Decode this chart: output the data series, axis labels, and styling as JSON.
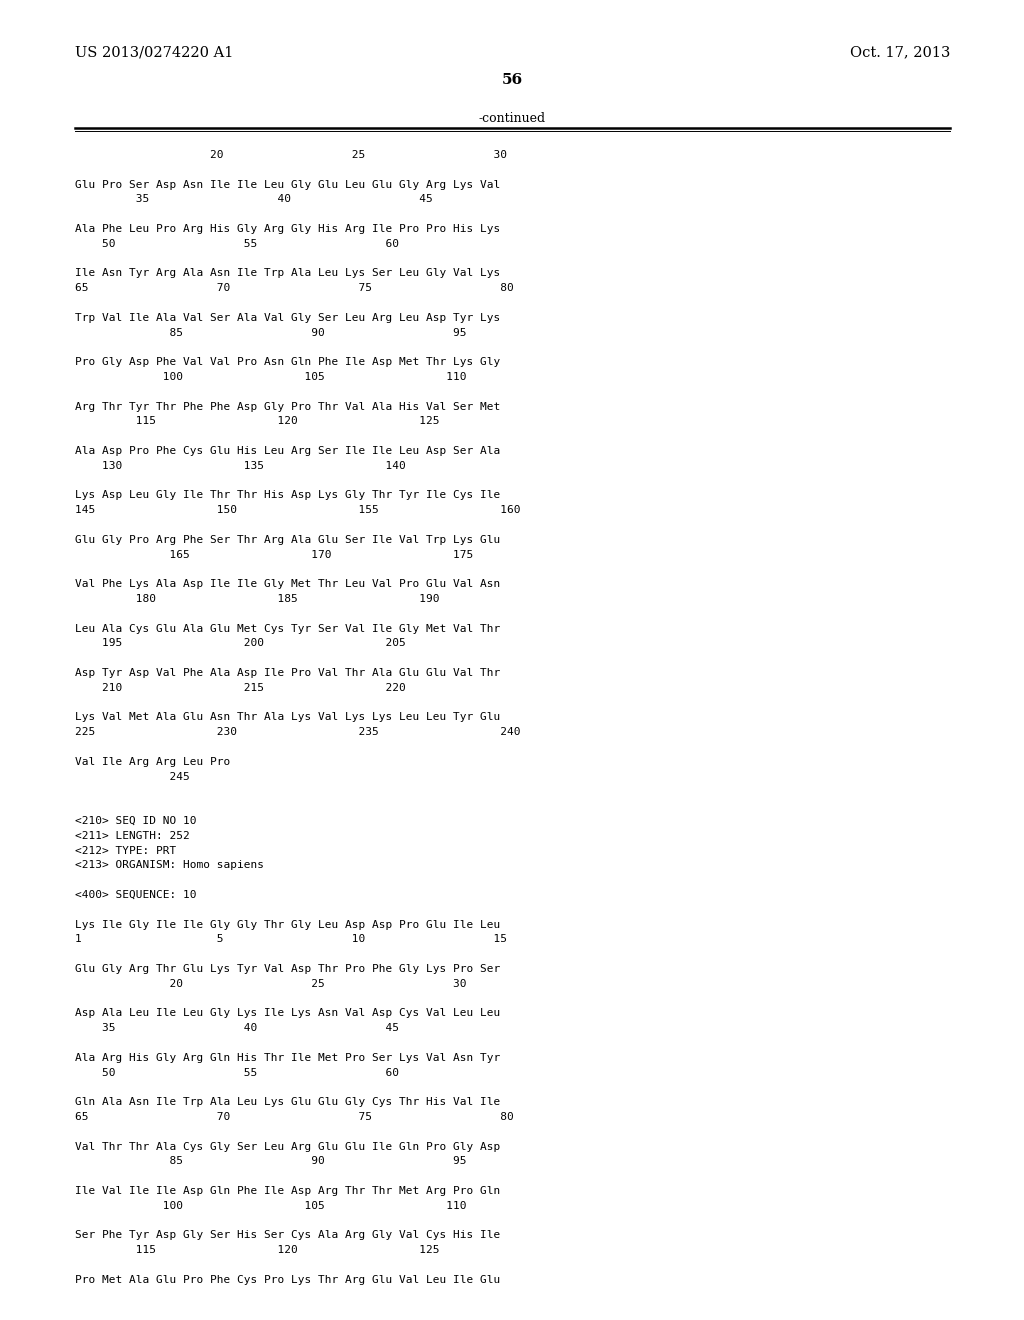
{
  "header_left": "US 2013/0274220 A1",
  "header_right": "Oct. 17, 2013",
  "page_number": "56",
  "continued_label": "-continued",
  "background_color": "#ffffff",
  "text_color": "#000000",
  "seq_lines": [
    "                    20                   25                   30",
    "",
    "Glu Pro Ser Asp Asn Ile Ile Leu Gly Glu Leu Glu Gly Arg Lys Val",
    "         35                   40                   45",
    "",
    "Ala Phe Leu Pro Arg His Gly Arg Gly His Arg Ile Pro Pro His Lys",
    "    50                   55                   60",
    "",
    "Ile Asn Tyr Arg Ala Asn Ile Trp Ala Leu Lys Ser Leu Gly Val Lys",
    "65                   70                   75                   80",
    "",
    "Trp Val Ile Ala Val Ser Ala Val Gly Ser Leu Arg Leu Asp Tyr Lys",
    "              85                   90                   95",
    "",
    "Pro Gly Asp Phe Val Val Pro Asn Gln Phe Ile Asp Met Thr Lys Gly",
    "             100                  105                  110",
    "",
    "Arg Thr Tyr Thr Phe Phe Asp Gly Pro Thr Val Ala His Val Ser Met",
    "         115                  120                  125",
    "",
    "Ala Asp Pro Phe Cys Glu His Leu Arg Ser Ile Ile Leu Asp Ser Ala",
    "    130                  135                  140",
    "",
    "Lys Asp Leu Gly Ile Thr Thr His Asp Lys Gly Thr Tyr Ile Cys Ile",
    "145                  150                  155                  160",
    "",
    "Glu Gly Pro Arg Phe Ser Thr Arg Ala Glu Ser Ile Val Trp Lys Glu",
    "              165                  170                  175",
    "",
    "Val Phe Lys Ala Asp Ile Ile Gly Met Thr Leu Val Pro Glu Val Asn",
    "         180                  185                  190",
    "",
    "Leu Ala Cys Glu Ala Glu Met Cys Tyr Ser Val Ile Gly Met Val Thr",
    "    195                  200                  205",
    "",
    "Asp Tyr Asp Val Phe Ala Asp Ile Pro Val Thr Ala Glu Glu Val Thr",
    "    210                  215                  220",
    "",
    "Lys Val Met Ala Glu Asn Thr Ala Lys Val Lys Lys Leu Leu Tyr Glu",
    "225                  230                  235                  240",
    "",
    "Val Ile Arg Arg Leu Pro",
    "              245",
    "",
    "",
    "<210> SEQ ID NO 10",
    "<211> LENGTH: 252",
    "<212> TYPE: PRT",
    "<213> ORGANISM: Homo sapiens",
    "",
    "<400> SEQUENCE: 10",
    "",
    "Lys Ile Gly Ile Ile Gly Gly Thr Gly Leu Asp Asp Pro Glu Ile Leu",
    "1                    5                   10                   15",
    "",
    "Glu Gly Arg Thr Glu Lys Tyr Val Asp Thr Pro Phe Gly Lys Pro Ser",
    "              20                   25                   30",
    "",
    "Asp Ala Leu Ile Leu Gly Lys Ile Lys Asn Val Asp Cys Val Leu Leu",
    "    35                   40                   45",
    "",
    "Ala Arg His Gly Arg Gln His Thr Ile Met Pro Ser Lys Val Asn Tyr",
    "    50                   55                   60",
    "",
    "Gln Ala Asn Ile Trp Ala Leu Lys Glu Glu Gly Cys Thr His Val Ile",
    "65                   70                   75                   80",
    "",
    "Val Thr Thr Ala Cys Gly Ser Leu Arg Glu Glu Ile Gln Pro Gly Asp",
    "              85                   90                   95",
    "",
    "Ile Val Ile Ile Asp Gln Phe Ile Asp Arg Thr Thr Met Arg Pro Gln",
    "             100                  105                  110",
    "",
    "Ser Phe Tyr Asp Gly Ser His Ser Cys Ala Arg Gly Val Cys His Ile",
    "         115                  120                  125",
    "",
    "Pro Met Ala Glu Pro Phe Cys Pro Lys Thr Arg Glu Val Leu Ile Glu"
  ]
}
